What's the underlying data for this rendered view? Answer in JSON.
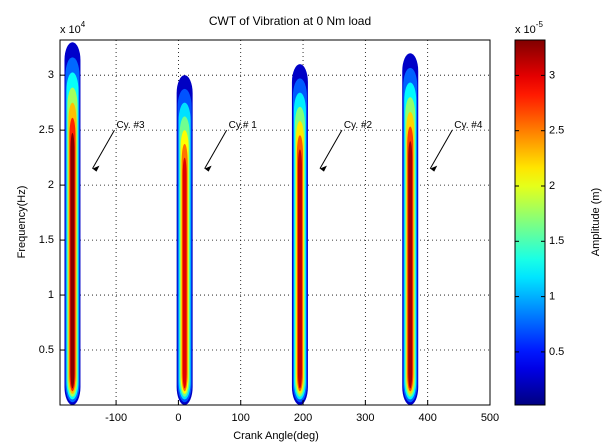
{
  "chart_data": {
    "type": "scalogram",
    "title": "CWT of Vibration at 0 Nm load",
    "xlabel": "Crank Angle(deg)",
    "ylabel": "Frequency(Hz)",
    "y_multiplier": {
      "base": "x 10",
      "exponent": "4"
    },
    "xlim": [
      -190,
      500
    ],
    "xticks": [
      -100,
      0,
      100,
      200,
      300,
      400,
      500
    ],
    "ylim": [
      0,
      3.32
    ],
    "yticks": [
      0.5,
      1,
      1.5,
      2,
      2.5,
      3
    ],
    "grid": true,
    "series": [
      {
        "x": [
          -170,
          10,
          195,
          372
        ],
        "values": [
          3.3,
          3.0,
          3.1,
          3.2
        ]
      }
    ],
    "annotations": [
      "Cy. #3",
      "Cy.# 1",
      "Cy. #2",
      "Cy. #4"
    ],
    "colorbar": {
      "label": "Amplitude (m)",
      "multiplier": {
        "base": "x 10",
        "exponent": "-5"
      },
      "clim": [
        0.02,
        3.32
      ],
      "ticks": [
        0.5,
        1,
        1.5,
        2,
        2.5,
        3
      ],
      "colormap": "jet"
    }
  }
}
